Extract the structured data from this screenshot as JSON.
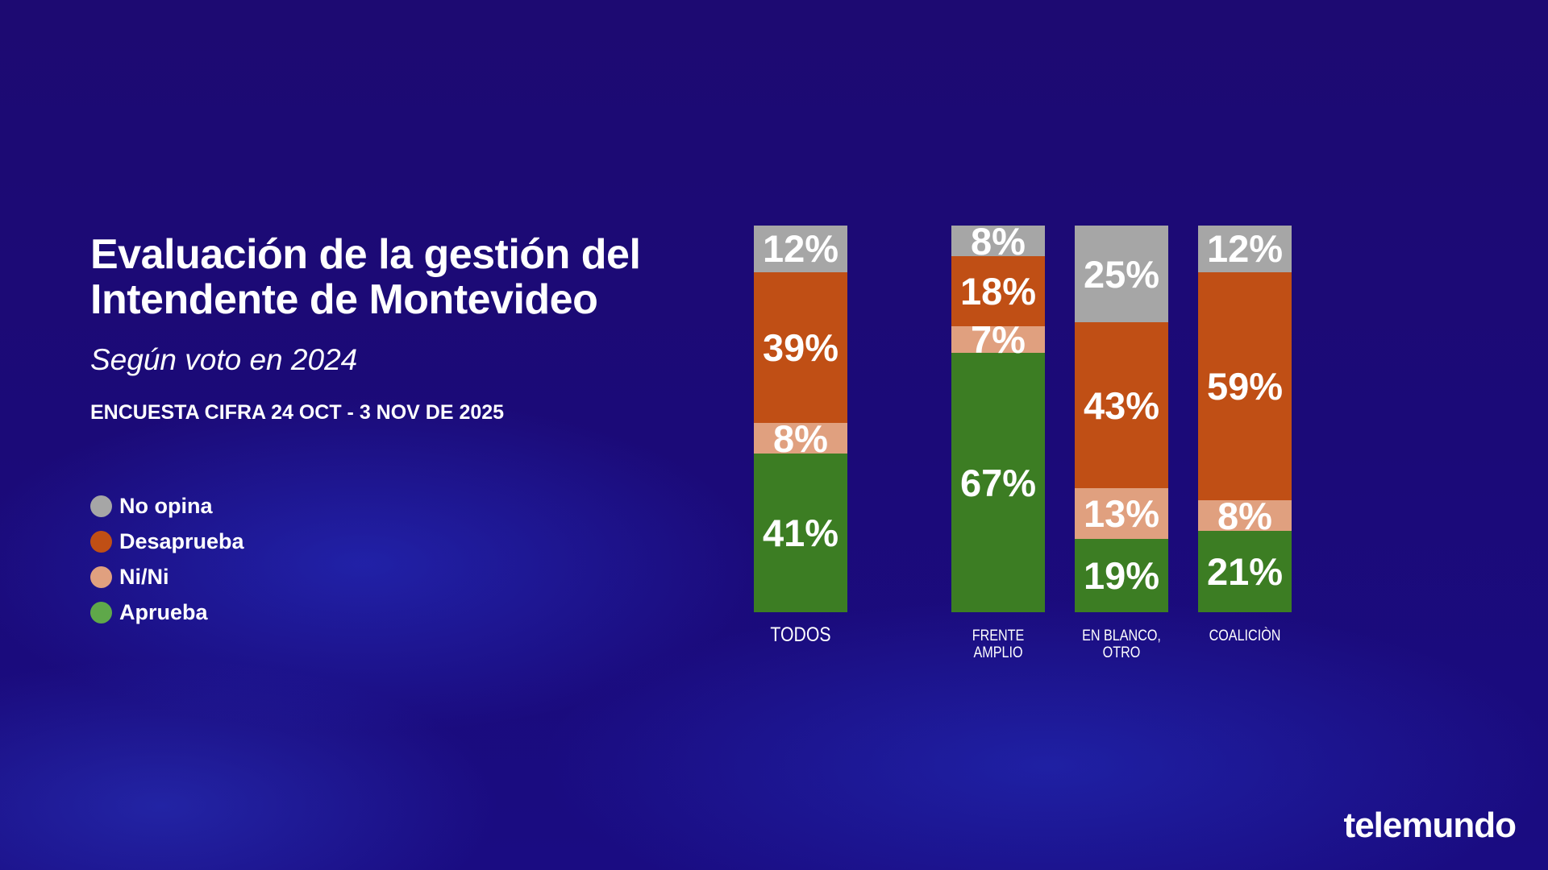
{
  "header": {
    "title_line1": "Evaluación de la gestión del",
    "title_line2": "Intendente de Montevideo",
    "subtitle": "Según voto en 2024",
    "survey": "ENCUESTA CIFRA 24 OCT - 3 NOV DE 2025"
  },
  "legend": [
    {
      "label": "No opina",
      "color": "#a6a6a6"
    },
    {
      "label": "Desaprueba",
      "color": "#c04f15"
    },
    {
      "label": "Ni/Ni",
      "color": "#e0a07f"
    },
    {
      "label": "Aprueba",
      "color": "#5fa84a"
    }
  ],
  "logo": "telemundo",
  "chart_data": {
    "type": "bar",
    "stacked": true,
    "orientation": "vertical",
    "categories": [
      "TODOS",
      "FRENTE AMPLIO",
      "EN BLANCO, OTRO",
      "COALICIÒN"
    ],
    "series": [
      {
        "name": "Aprueba",
        "color": "#3c7d23",
        "values": [
          41,
          67,
          19,
          21
        ]
      },
      {
        "name": "Ni/Ni",
        "color": "#e0a07f",
        "values": [
          8,
          7,
          13,
          8
        ]
      },
      {
        "name": "Desaprueba",
        "color": "#c04f15",
        "values": [
          39,
          18,
          43,
          59
        ]
      },
      {
        "name": "No opina",
        "color": "#a6a6a6",
        "values": [
          12,
          8,
          25,
          12
        ]
      }
    ],
    "ylim": [
      0,
      100
    ],
    "unit": "%",
    "legend_position": "left",
    "grid": false
  }
}
